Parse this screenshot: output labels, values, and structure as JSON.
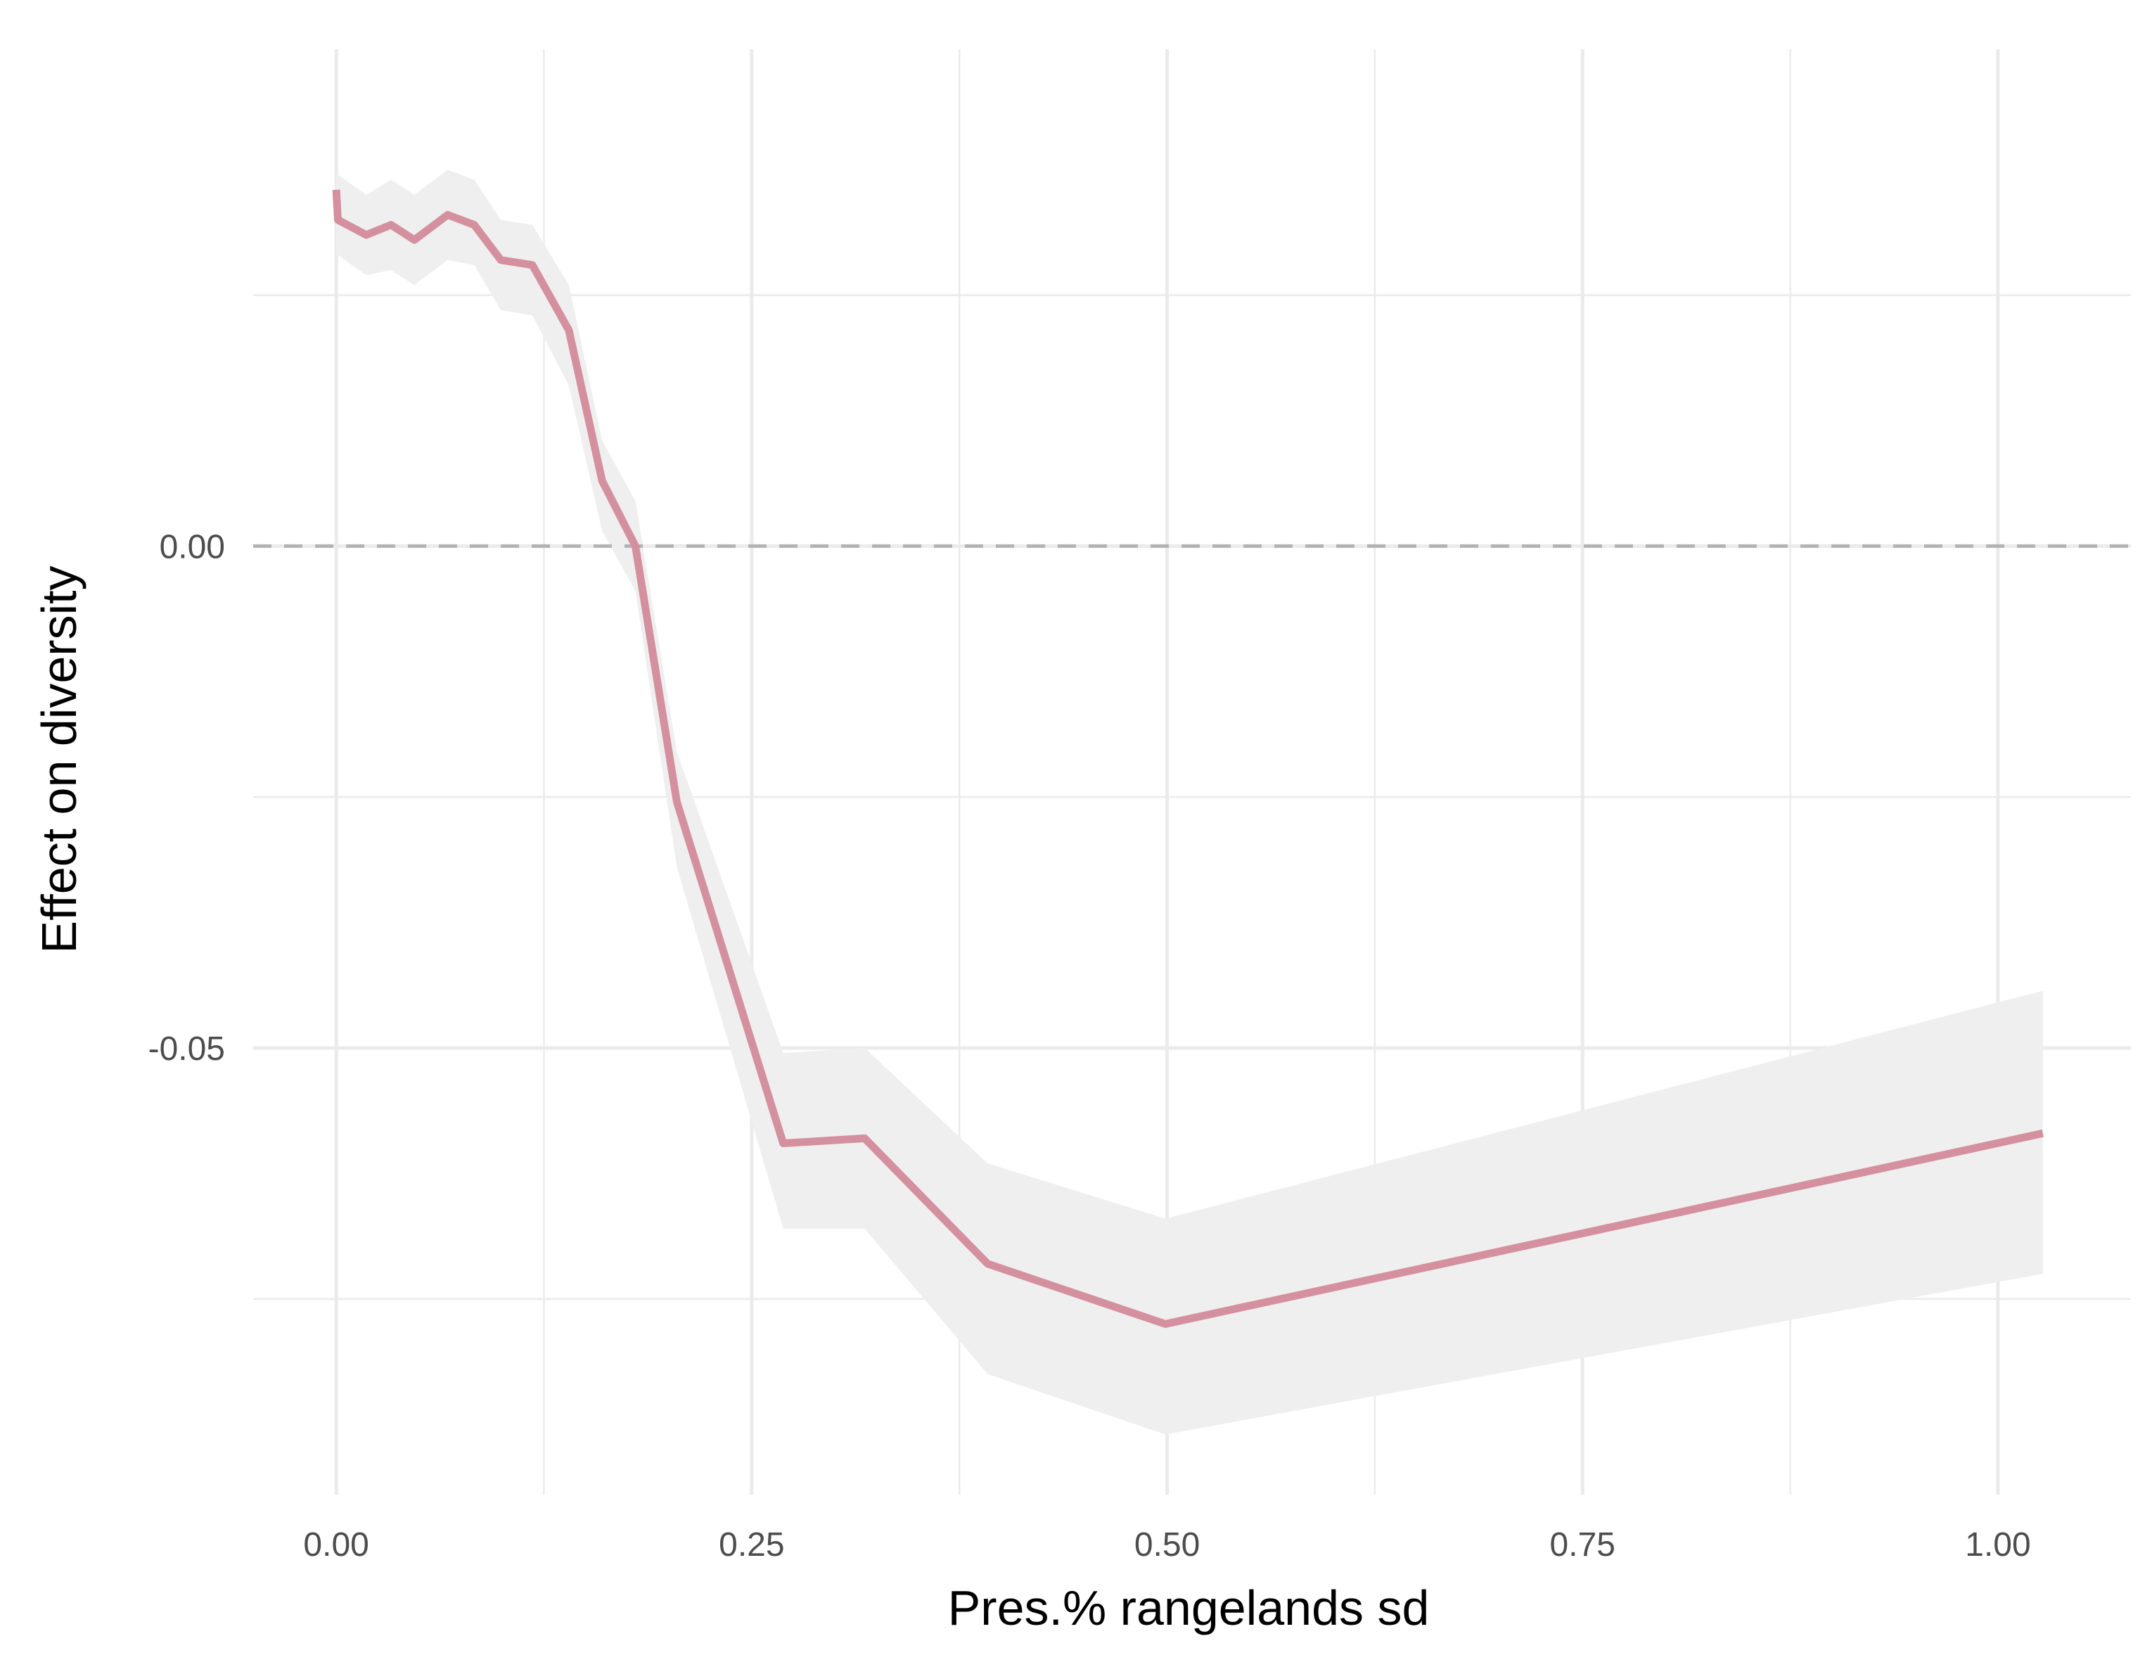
{
  "chart_data": {
    "type": "line",
    "title": "",
    "xlabel": "Pres.% rangelands sd",
    "ylabel": "Effect on diversity",
    "xlim": [
      -0.05,
      1.08
    ],
    "ylim": [
      -0.0945,
      0.0495
    ],
    "x_ticks": [
      0.0,
      0.25,
      0.5,
      0.75,
      1.0
    ],
    "x_tick_labels": [
      "0.00",
      "0.25",
      "0.50",
      "0.75",
      "1.00"
    ],
    "x_minor_ticks": [
      0.125,
      0.375,
      0.625,
      0.875
    ],
    "y_ticks": [
      0.0,
      -0.05
    ],
    "y_tick_labels": [
      "0.00",
      "-0.05"
    ],
    "y_minor_ticks": [
      0.025,
      -0.025,
      -0.075
    ],
    "reference_line": {
      "y": 0.0,
      "style": "dashed",
      "color": "#b3b3b3"
    },
    "grid": true,
    "legend": "none",
    "series": [
      {
        "color": "#d4909e",
        "ribbon_color": "#efefef",
        "points": [
          {
            "x": 0.0,
            "y": 0.0355,
            "lo": 0.029,
            "hi": 0.037
          },
          {
            "x": 0.001,
            "y": 0.0325,
            "lo": 0.029,
            "hi": 0.037
          },
          {
            "x": 0.018,
            "y": 0.031,
            "lo": 0.027,
            "hi": 0.035
          },
          {
            "x": 0.033,
            "y": 0.032,
            "lo": 0.0275,
            "hi": 0.0365
          },
          {
            "x": 0.047,
            "y": 0.0305,
            "lo": 0.026,
            "hi": 0.035
          },
          {
            "x": 0.067,
            "y": 0.033,
            "lo": 0.0285,
            "hi": 0.0375
          },
          {
            "x": 0.083,
            "y": 0.032,
            "lo": 0.028,
            "hi": 0.0365
          },
          {
            "x": 0.099,
            "y": 0.0285,
            "lo": 0.0235,
            "hi": 0.0325
          },
          {
            "x": 0.118,
            "y": 0.028,
            "lo": 0.023,
            "hi": 0.032
          },
          {
            "x": 0.14,
            "y": 0.0215,
            "lo": 0.016,
            "hi": 0.026
          },
          {
            "x": 0.16,
            "y": 0.0065,
            "lo": 0.0015,
            "hi": 0.0105
          },
          {
            "x": 0.18,
            "y": 0.0,
            "lo": -0.0045,
            "hi": 0.0045
          },
          {
            "x": 0.205,
            "y": -0.0255,
            "lo": -0.032,
            "hi": -0.0205
          },
          {
            "x": 0.269,
            "y": -0.0595,
            "lo": -0.068,
            "hi": -0.0505
          },
          {
            "x": 0.318,
            "y": -0.059,
            "lo": -0.068,
            "hi": -0.05
          },
          {
            "x": 0.392,
            "y": -0.0715,
            "lo": -0.0825,
            "hi": -0.0615
          },
          {
            "x": 0.499,
            "y": -0.0775,
            "lo": -0.0885,
            "hi": -0.067
          },
          {
            "x": 1.027,
            "y": -0.0585,
            "lo": -0.0725,
            "hi": -0.0443
          }
        ]
      }
    ]
  }
}
